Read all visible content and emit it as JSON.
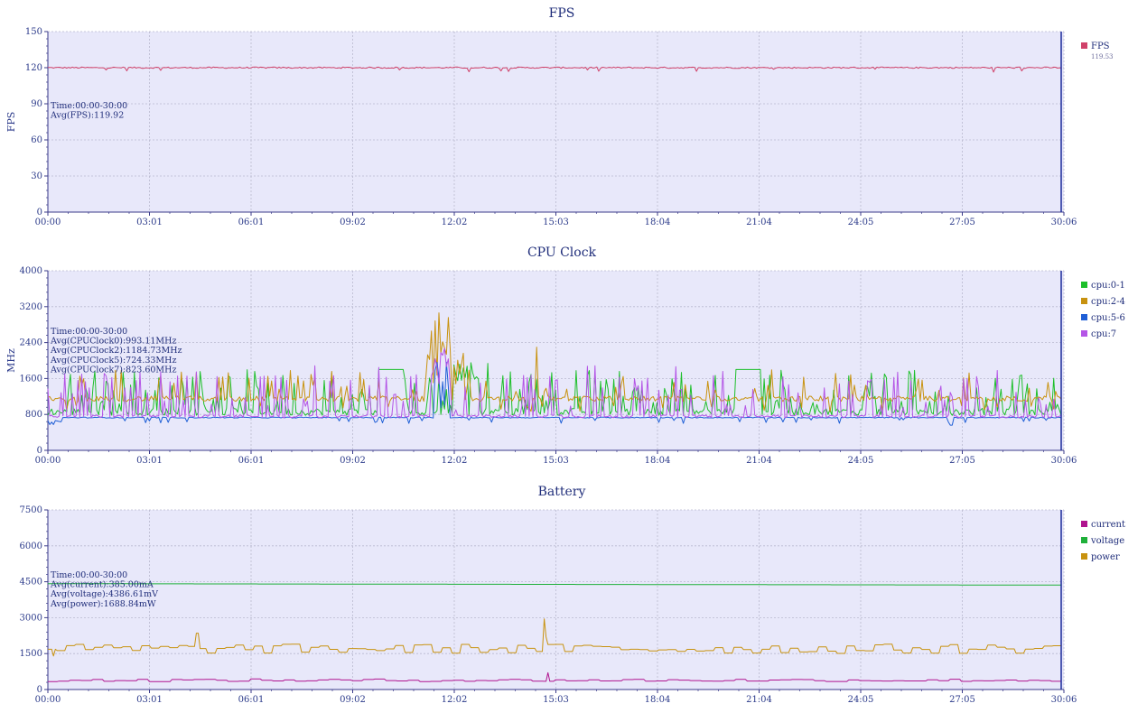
{
  "chart_data": [
    {
      "type": "line",
      "title": "FPS",
      "ylabel": "FPS",
      "ylim": [
        0,
        150
      ],
      "yticks": [
        "0",
        "30",
        "60",
        "90",
        "120",
        "150"
      ],
      "xticks": [
        "00:00",
        "03:01",
        "06:01",
        "09:02",
        "12:02",
        "15:03",
        "18:04",
        "21:04",
        "24:05",
        "27:05",
        "30:06"
      ],
      "annotation": [
        "Time:00:00-30:00",
        "Avg(FPS):119.92"
      ],
      "series": [
        {
          "name": "FPS",
          "legend_value": "119.53",
          "color": "#d0426a",
          "base": 120,
          "noise": 0.6,
          "mode": "flat"
        }
      ]
    },
    {
      "type": "line",
      "title": "CPU Clock",
      "ylabel": "MHz",
      "ylim": [
        0,
        4000
      ],
      "yticks": [
        "0",
        "800",
        "1600",
        "2400",
        "3200",
        "4000"
      ],
      "xticks": [
        "00:00",
        "03:01",
        "06:01",
        "09:02",
        "12:02",
        "15:03",
        "18:04",
        "21:04",
        "24:05",
        "27:05",
        "30:06"
      ],
      "annotation": [
        "Time:00:00-30:00",
        "Avg(CPUClock0):993.11MHz",
        "Avg(CPUClock2):1184.73MHz",
        "Avg(CPUClock5):724.33MHz",
        "Avg(CPUClock7):823.60MHz"
      ],
      "series": [
        {
          "name": "cpu:0-1",
          "color": "#1dbf2a",
          "base": 900,
          "peak": 1800,
          "mode": "spiky",
          "avg": 993.11
        },
        {
          "name": "cpu:2-4",
          "color": "#c8920f",
          "base": 1150,
          "peak": 1700,
          "mode": "band",
          "avg": 1184.73
        },
        {
          "name": "cpu:5-6",
          "color": "#1f5fd6",
          "base": 720,
          "peak": 900,
          "mode": "low",
          "avg": 724.33
        },
        {
          "name": "cpu:7",
          "color": "#b455e6",
          "base": 780,
          "peak": 1900,
          "mode": "spiky2",
          "avg": 823.6
        }
      ]
    },
    {
      "type": "line",
      "title": "Battery",
      "ylabel": "",
      "ylim": [
        0,
        7500
      ],
      "yticks": [
        "0",
        "1500",
        "3000",
        "4500",
        "6000",
        "7500"
      ],
      "xticks": [
        "00:00",
        "03:01",
        "06:01",
        "09:02",
        "12:02",
        "15:03",
        "18:04",
        "21:04",
        "24:05",
        "27:05",
        "30:06"
      ],
      "annotation": [
        "Time:00:00-30:00",
        "Avg(current):385.00mA",
        "Avg(voltage):4386.61mV",
        "Avg(power):1688.84mW"
      ],
      "series": [
        {
          "name": "current",
          "color": "#b0138f",
          "base": 385,
          "mode": "step_low"
        },
        {
          "name": "voltage",
          "color": "#1fb03a",
          "base": 4420,
          "end": 4360,
          "mode": "decline"
        },
        {
          "name": "power",
          "color": "#c8920f",
          "base": 1690,
          "mode": "step"
        }
      ]
    }
  ]
}
